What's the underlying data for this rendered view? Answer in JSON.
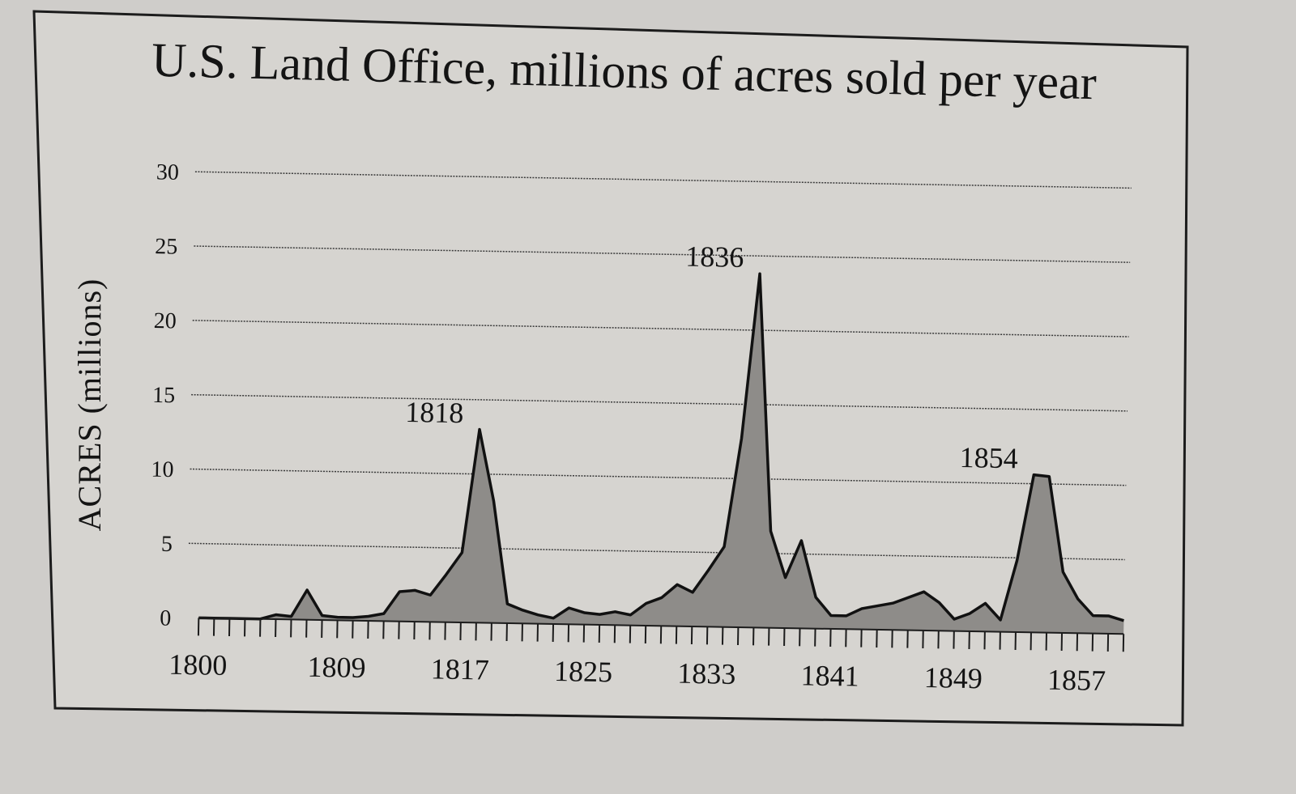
{
  "chart_data": {
    "type": "area",
    "title": "U.S. Land Office, millions of acres sold per year",
    "xlabel": "",
    "ylabel": "ACRES (millions)",
    "ylim": [
      0,
      30
    ],
    "yticks": [
      0,
      5,
      10,
      15,
      20,
      25,
      30
    ],
    "ytick_labels": [
      "0",
      "5",
      "10",
      "15",
      "20",
      "25",
      "30"
    ],
    "xlim": [
      1800,
      1860
    ],
    "xticks": [
      1800,
      1809,
      1817,
      1825,
      1833,
      1841,
      1849,
      1857
    ],
    "xtick_labels": [
      "1800",
      "1809",
      "1817",
      "1825",
      "1833",
      "1841",
      "1849",
      "1857"
    ],
    "grid": true,
    "series": [
      {
        "name": "Acres sold",
        "x": [
          1800,
          1801,
          1802,
          1803,
          1804,
          1805,
          1806,
          1807,
          1808,
          1809,
          1810,
          1811,
          1812,
          1813,
          1814,
          1815,
          1816,
          1817,
          1818,
          1819,
          1820,
          1821,
          1822,
          1823,
          1824,
          1825,
          1826,
          1827,
          1828,
          1829,
          1830,
          1831,
          1832,
          1833,
          1834,
          1835,
          1836,
          1837,
          1838,
          1839,
          1840,
          1841,
          1842,
          1843,
          1844,
          1845,
          1846,
          1847,
          1848,
          1849,
          1850,
          1851,
          1852,
          1853,
          1854,
          1855,
          1856,
          1857,
          1858,
          1859,
          1860
        ],
        "values": [
          0,
          0,
          0,
          0,
          0,
          0.3,
          0.2,
          2.0,
          0.3,
          0.2,
          0.2,
          0.3,
          0.5,
          2.0,
          2.1,
          1.8,
          3.2,
          4.7,
          13.0,
          8.2,
          1.3,
          0.9,
          0.6,
          0.4,
          1.1,
          0.8,
          0.7,
          0.9,
          0.7,
          1.5,
          1.9,
          2.8,
          2.3,
          3.8,
          5.4,
          12.7,
          23.8,
          6.5,
          3.4,
          5.9,
          2.1,
          0.9,
          0.9,
          1.4,
          1.6,
          1.8,
          2.2,
          2.6,
          1.9,
          0.8,
          1.2,
          1.9,
          0.8,
          4.8,
          10.6,
          10.5,
          4.1,
          2.3,
          1.2,
          1.2,
          0.9
        ]
      }
    ],
    "annotations": [
      {
        "label": "1818",
        "x": 1818,
        "y": 13.0
      },
      {
        "label": "1836",
        "x": 1836,
        "y": 23.8
      },
      {
        "label": "1854",
        "x": 1854,
        "y": 10.6
      }
    ]
  },
  "colors": {
    "background": "#cfcdca",
    "panel": "#d6d4d0",
    "area": "#8e8c89",
    "line": "#111111",
    "text": "#141414"
  }
}
